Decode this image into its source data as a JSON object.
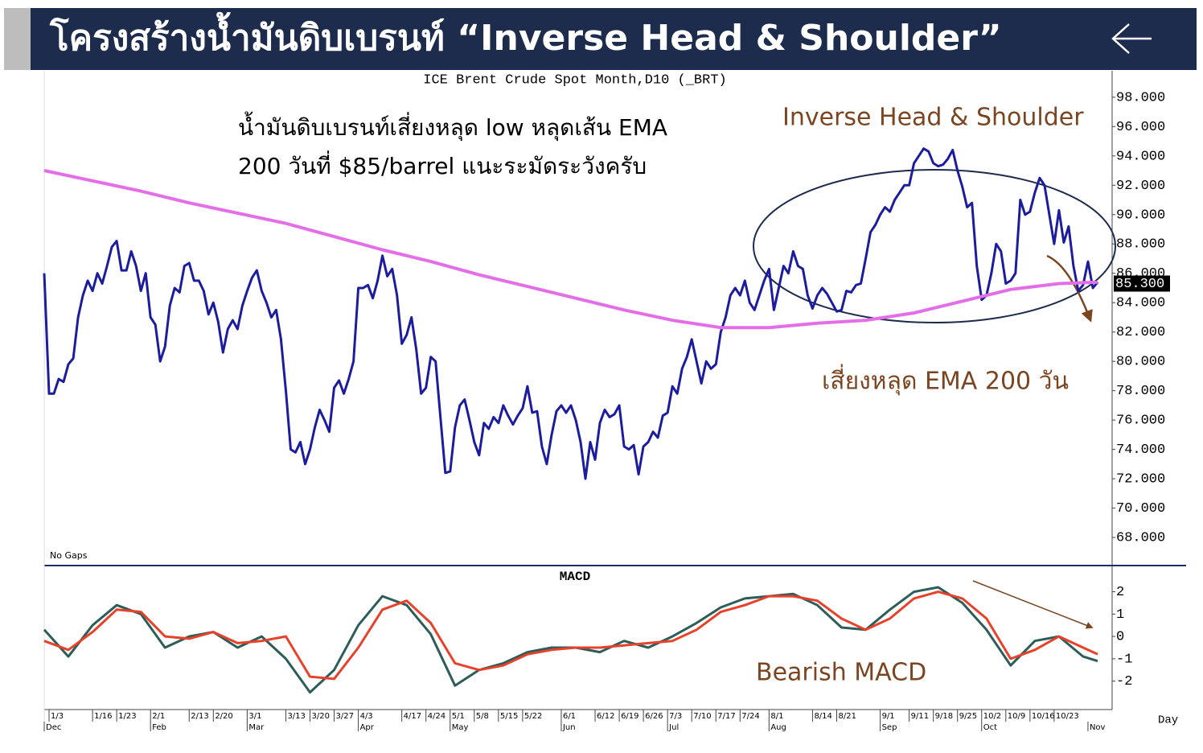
{
  "header": {
    "title": "โครงสร้างน้ำมันดิบเบรนท์ “Inverse Head & Shoulder”"
  },
  "chart_data": [
    {
      "type": "line",
      "title": "ICE Brent Crude Spot Month,D10 (_BRT)",
      "annotations": [
        "น้ำมันดิบเบรนท์เสี่ยงหลุด low หลุดเส้น EMA",
        "200 วันที่ $85/barrel แนะระมัดระวังครับ",
        "Inverse Head & Shoulder",
        "เสี่ยงหลุด EMA 200 วัน",
        "No Gaps"
      ],
      "xlim": [
        0,
        221
      ],
      "ylim": [
        66.25,
        99.8
      ],
      "yticks": [
        {
          "value": 98,
          "label": "98.000"
        },
        {
          "value": 96,
          "label": "96.000"
        },
        {
          "value": 94,
          "label": "94.000"
        },
        {
          "value": 92,
          "label": "92.000"
        },
        {
          "value": 90,
          "label": "90.000"
        },
        {
          "value": 88,
          "label": "88.000"
        },
        {
          "value": 86,
          "label": "86.000"
        },
        {
          "value": 84,
          "label": "84.000"
        },
        {
          "value": 82,
          "label": "82.000"
        },
        {
          "value": 80,
          "label": "80.000"
        },
        {
          "value": 78,
          "label": "78.000"
        },
        {
          "value": 76,
          "label": "76.000"
        },
        {
          "value": 74,
          "label": "74.000"
        },
        {
          "value": 72,
          "label": "72.000"
        },
        {
          "value": 70,
          "label": "70.000"
        },
        {
          "value": 68,
          "label": "68.000"
        }
      ],
      "price_label": {
        "value": 85.3,
        "label": "85.300"
      },
      "series": [
        {
          "color": "#1c1c9e",
          "values": [
            86,
            77.8,
            77.8,
            78.8,
            78.6,
            79.8,
            80.2,
            83,
            84.5,
            85.5,
            84.8,
            86,
            85.3,
            86.5,
            87.8,
            88.2,
            86.2,
            86.2,
            87.5,
            86.5,
            84.8,
            86,
            83,
            82.5,
            80,
            81,
            83.8,
            85,
            84.7,
            86.5,
            86.7,
            85.5,
            85.5,
            84.8,
            83.2,
            84,
            82.7,
            80.6,
            82.2,
            82.8,
            82.2,
            83.8,
            84.8,
            85.7,
            86.2,
            84.8,
            84,
            83,
            83.5,
            81.5,
            78,
            74,
            73.8,
            74.5,
            73,
            74,
            75.5,
            76.7,
            76,
            75.2,
            78.2,
            78.7,
            77.8,
            78.8,
            80,
            85,
            85,
            85.2,
            84.3,
            85.5,
            87.2,
            85.8,
            86.3,
            84.5,
            81.2,
            81.8,
            83,
            80.8,
            77.8,
            78.2,
            80.3,
            80,
            76.2,
            72.4,
            72.5,
            75.5,
            77,
            77.4,
            76,
            74.5,
            73.6,
            75.8,
            75.4,
            76.2,
            75.8,
            77,
            76.3,
            75.7,
            76.3,
            76.8,
            78.3,
            76.5,
            76.6,
            74.2,
            73,
            75,
            76.6,
            77,
            76.5,
            77,
            76,
            74.5,
            72,
            74.5,
            73.3,
            75.8,
            76.7,
            76.2,
            76.4,
            77,
            74.2,
            74,
            74.3,
            72.3,
            74.2,
            74.5,
            75.2,
            74.8,
            76.3,
            76.5,
            78.3,
            77.8,
            79.5,
            80.3,
            81.5,
            80,
            78.5,
            80,
            79.5,
            79.8,
            82,
            83,
            84.5,
            85,
            84.5,
            85.5,
            84,
            83.5,
            84.5,
            85.5,
            86.3,
            83.5,
            85,
            86.5,
            86,
            87.5,
            86.5,
            86.3,
            84.5,
            83.6,
            84.5,
            85,
            84.6,
            84,
            83.4,
            83.5,
            84.8,
            84.7,
            85.2,
            85.3,
            87,
            88.8,
            89.3,
            90,
            90.5,
            90.2,
            91,
            91.5,
            92,
            92,
            93.5,
            94,
            94.5,
            94.3,
            93.5,
            93.3,
            93.4,
            93.8,
            94.4,
            93,
            91.9,
            90.5,
            90.8,
            86.5,
            84.2,
            84.5,
            86,
            88,
            87.5,
            85.3,
            85.5,
            86,
            91,
            90,
            90.2,
            91.5,
            92.5,
            92,
            90,
            88,
            90.3,
            88.1,
            89.2,
            86.5,
            84.8,
            85.2,
            86.8,
            85,
            85.4
          ]
        },
        {
          "color": "#e46ee8",
          "x": [
            0,
            10,
            20,
            30,
            40,
            50,
            60,
            70,
            80,
            90,
            100,
            110,
            120,
            130,
            140,
            150,
            160,
            170,
            180,
            190,
            200,
            210,
            218
          ],
          "values": [
            93,
            92.3,
            91.6,
            90.8,
            90.1,
            89.4,
            88.5,
            87.6,
            86.8,
            85.9,
            85.1,
            84.3,
            83.5,
            82.8,
            82.3,
            82.3,
            82.6,
            82.8,
            83.3,
            84.1,
            84.9,
            85.3,
            85.4
          ]
        }
      ]
    },
    {
      "type": "line",
      "title": "MACD",
      "annotations": [
        "Bearish MACD",
        "Day"
      ],
      "xlim": [
        0,
        221
      ],
      "ylim": [
        -3.2,
        3.1
      ],
      "yticks": [
        2,
        1,
        0,
        -1,
        -2
      ],
      "xticks": [
        {
          "value": 1,
          "label": "1/3"
        },
        {
          "value": 10,
          "label": "1/16"
        },
        {
          "value": 15,
          "label": "1/23"
        },
        {
          "value": 22,
          "label": "2/1"
        },
        {
          "value": 30,
          "label": "2/13"
        },
        {
          "value": 35,
          "label": "2/20"
        },
        {
          "value": 42,
          "label": "3/1"
        },
        {
          "value": 50,
          "label": "3/13"
        },
        {
          "value": 55,
          "label": "3/20"
        },
        {
          "value": 60,
          "label": "3/27"
        },
        {
          "value": 65,
          "label": "4/3"
        },
        {
          "value": 74,
          "label": "4/17"
        },
        {
          "value": 79,
          "label": "4/24"
        },
        {
          "value": 84,
          "label": "5/1"
        },
        {
          "value": 89,
          "label": "5/8"
        },
        {
          "value": 94,
          "label": "5/15"
        },
        {
          "value": 99,
          "label": "5/22"
        },
        {
          "value": 107,
          "label": "6/1"
        },
        {
          "value": 114,
          "label": "6/12"
        },
        {
          "value": 119,
          "label": "6/19"
        },
        {
          "value": 124,
          "label": "6/26"
        },
        {
          "value": 129,
          "label": "7/3"
        },
        {
          "value": 134,
          "label": "7/10"
        },
        {
          "value": 139,
          "label": "7/17"
        },
        {
          "value": 144,
          "label": "7/24"
        },
        {
          "value": 150,
          "label": "8/1"
        },
        {
          "value": 159,
          "label": "8/14"
        },
        {
          "value": 164,
          "label": "8/21"
        },
        {
          "value": 173,
          "label": "9/1"
        },
        {
          "value": 179,
          "label": "9/11"
        },
        {
          "value": 184,
          "label": "9/18"
        },
        {
          "value": 189,
          "label": "9/25"
        },
        {
          "value": 194,
          "label": "10/2"
        },
        {
          "value": 199,
          "label": "10/9"
        },
        {
          "value": 204,
          "label": "10/16"
        },
        {
          "value": 209,
          "label": "10/23"
        }
      ],
      "month_ticks": [
        {
          "value": 0,
          "label": "Dec"
        },
        {
          "value": 22,
          "label": "Feb"
        },
        {
          "value": 42,
          "label": "Mar"
        },
        {
          "value": 65,
          "label": "Apr"
        },
        {
          "value": 84,
          "label": "May"
        },
        {
          "value": 107,
          "label": "Jun"
        },
        {
          "value": 129,
          "label": "Jul"
        },
        {
          "value": 150,
          "label": "Aug"
        },
        {
          "value": 173,
          "label": "Sep"
        },
        {
          "value": 194,
          "label": "Oct"
        },
        {
          "value": 216,
          "label": "Nov"
        }
      ],
      "series": [
        {
          "color": "#2c5d58",
          "x": [
            0,
            5,
            10,
            15,
            20,
            25,
            30,
            35,
            40,
            45,
            50,
            55,
            60,
            65,
            70,
            75,
            80,
            85,
            90,
            95,
            100,
            105,
            110,
            115,
            120,
            125,
            130,
            135,
            140,
            145,
            150,
            155,
            160,
            165,
            170,
            175,
            180,
            185,
            190,
            195,
            200,
            205,
            210,
            215,
            218
          ],
          "values": [
            0.3,
            -0.9,
            0.5,
            1.4,
            1,
            -0.5,
            0,
            0.2,
            -0.5,
            0,
            -1,
            -2.5,
            -1.5,
            0.5,
            1.8,
            1.4,
            0.1,
            -2.2,
            -1.5,
            -1.2,
            -0.7,
            -0.5,
            -0.5,
            -0.7,
            -0.2,
            -0.5,
            0,
            0.6,
            1.3,
            1.7,
            1.8,
            1.9,
            1.4,
            0.4,
            0.3,
            1.2,
            2,
            2.2,
            1.5,
            0.3,
            -1.3,
            -0.2,
            0,
            -0.9,
            -1.1
          ]
        },
        {
          "color": "#e8412a",
          "x": [
            0,
            5,
            10,
            15,
            20,
            25,
            30,
            35,
            40,
            45,
            50,
            55,
            60,
            65,
            70,
            75,
            80,
            85,
            90,
            95,
            100,
            105,
            110,
            115,
            120,
            125,
            130,
            135,
            140,
            145,
            150,
            155,
            160,
            165,
            170,
            175,
            180,
            185,
            190,
            195,
            200,
            205,
            210,
            215,
            218
          ],
          "values": [
            -0.2,
            -0.6,
            0.2,
            1.2,
            1.1,
            0,
            -0.1,
            0.2,
            -0.3,
            -0.2,
            0,
            -1.8,
            -1.9,
            -0.5,
            1.2,
            1.6,
            0.6,
            -1.2,
            -1.5,
            -1.3,
            -0.8,
            -0.6,
            -0.5,
            -0.5,
            -0.4,
            -0.3,
            -0.2,
            0.3,
            1.1,
            1.4,
            1.8,
            1.8,
            1.6,
            0.8,
            0.3,
            0.8,
            1.7,
            2,
            1.7,
            0.8,
            -1,
            -0.6,
            0,
            -0.5,
            -0.8
          ]
        }
      ]
    }
  ]
}
